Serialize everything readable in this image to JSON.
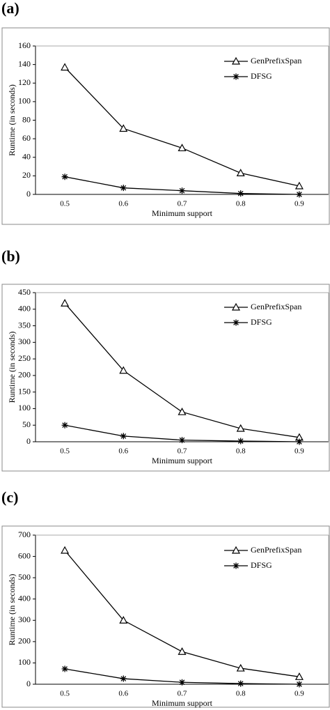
{
  "chart_data": [
    {
      "type": "line",
      "label": "(a)",
      "ylabel": "Runtime (in seconds)",
      "xlabel": "Minimum support",
      "categories": [
        "0.5",
        "0.6",
        "0.7",
        "0.8",
        "0.9"
      ],
      "series": [
        {
          "name": "GenPrefixSpan",
          "color": "#000000",
          "marker": "triangle",
          "values": [
            137,
            71,
            50,
            23,
            9
          ]
        },
        {
          "name": "DFSG",
          "color": "#000000",
          "marker": "asterisk",
          "values": [
            19,
            7,
            4,
            1,
            0
          ]
        }
      ],
      "ylim": [
        0,
        160
      ],
      "yticks": [
        0,
        20,
        40,
        60,
        80,
        100,
        120,
        140,
        160
      ]
    },
    {
      "type": "line",
      "label": "(b)",
      "ylabel": "Runtime (in seconds)",
      "xlabel": "Minimum support",
      "categories": [
        "0.5",
        "0.6",
        "0.7",
        "0.8",
        "0.9"
      ],
      "series": [
        {
          "name": "GenPrefixSpan",
          "color": "#000000",
          "marker": "triangle",
          "values": [
            418,
            215,
            90,
            40,
            13
          ]
        },
        {
          "name": "DFSG",
          "color": "#000000",
          "marker": "asterisk",
          "values": [
            50,
            17,
            5,
            2,
            0
          ]
        }
      ],
      "ylim": [
        0,
        450
      ],
      "yticks": [
        0,
        50,
        100,
        150,
        200,
        250,
        300,
        350,
        400,
        450
      ]
    },
    {
      "type": "line",
      "label": "(c)",
      "ylabel": "Runtime (in seconds)",
      "xlabel": "Minimum support",
      "categories": [
        "0.5",
        "0.6",
        "0.7",
        "0.8",
        "0.9"
      ],
      "series": [
        {
          "name": "GenPrefixSpan",
          "color": "#000000",
          "marker": "triangle",
          "values": [
            628,
            300,
            153,
            75,
            35
          ]
        },
        {
          "name": "DFSG",
          "color": "#000000",
          "marker": "asterisk",
          "values": [
            72,
            26,
            9,
            3,
            0
          ]
        }
      ],
      "ylim": [
        0,
        700
      ],
      "yticks": [
        0,
        100,
        200,
        300,
        400,
        500,
        600,
        700
      ]
    }
  ]
}
